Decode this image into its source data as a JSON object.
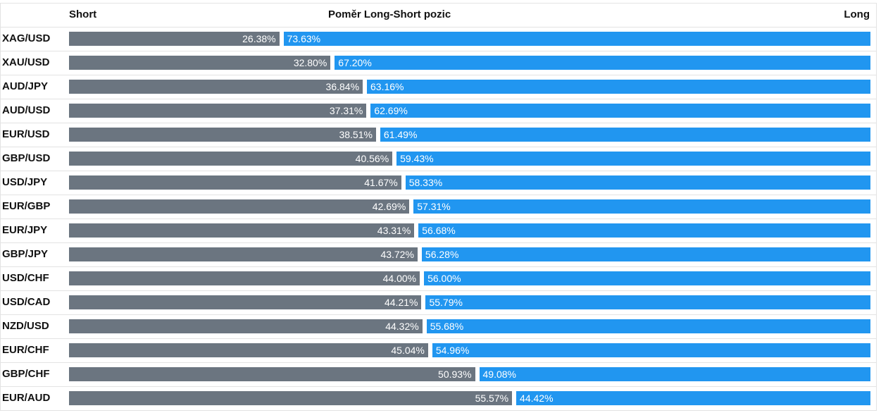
{
  "header": {
    "short_label": "Short",
    "title": "Poměr Long-Short pozic",
    "long_label": "Long"
  },
  "colors": {
    "short": "#6b7580",
    "long": "#2196f0"
  },
  "chart_data": {
    "type": "bar",
    "orientation": "horizontal",
    "stacked": true,
    "title": "Poměr Long-Short pozic",
    "categories": [
      "XAG/USD",
      "XAU/USD",
      "AUD/JPY",
      "AUD/USD",
      "EUR/USD",
      "GBP/USD",
      "USD/JPY",
      "EUR/GBP",
      "EUR/JPY",
      "GBP/JPY",
      "USD/CHF",
      "USD/CAD",
      "NZD/USD",
      "EUR/CHF",
      "GBP/CHF",
      "EUR/AUD"
    ],
    "series": [
      {
        "name": "Short",
        "values": [
          26.38,
          32.8,
          36.84,
          37.31,
          38.51,
          40.56,
          41.67,
          42.69,
          43.31,
          43.72,
          44.0,
          44.21,
          44.32,
          45.04,
          50.93,
          55.57
        ],
        "labels": [
          "26.38%",
          "32.80%",
          "36.84%",
          "37.31%",
          "38.51%",
          "40.56%",
          "41.67%",
          "42.69%",
          "43.31%",
          "43.72%",
          "44.00%",
          "44.21%",
          "44.32%",
          "45.04%",
          "50.93%",
          "55.57%"
        ]
      },
      {
        "name": "Long",
        "values": [
          73.63,
          67.2,
          63.16,
          62.69,
          61.49,
          59.43,
          58.33,
          57.31,
          56.68,
          56.28,
          56.0,
          55.79,
          55.68,
          54.96,
          49.08,
          44.42
        ],
        "labels": [
          "73.63%",
          "67.20%",
          "63.16%",
          "62.69%",
          "61.49%",
          "59.43%",
          "58.33%",
          "57.31%",
          "56.68%",
          "56.28%",
          "56.00%",
          "55.79%",
          "55.68%",
          "54.96%",
          "49.08%",
          "44.42%"
        ]
      }
    ],
    "xlim": [
      0,
      100
    ]
  }
}
